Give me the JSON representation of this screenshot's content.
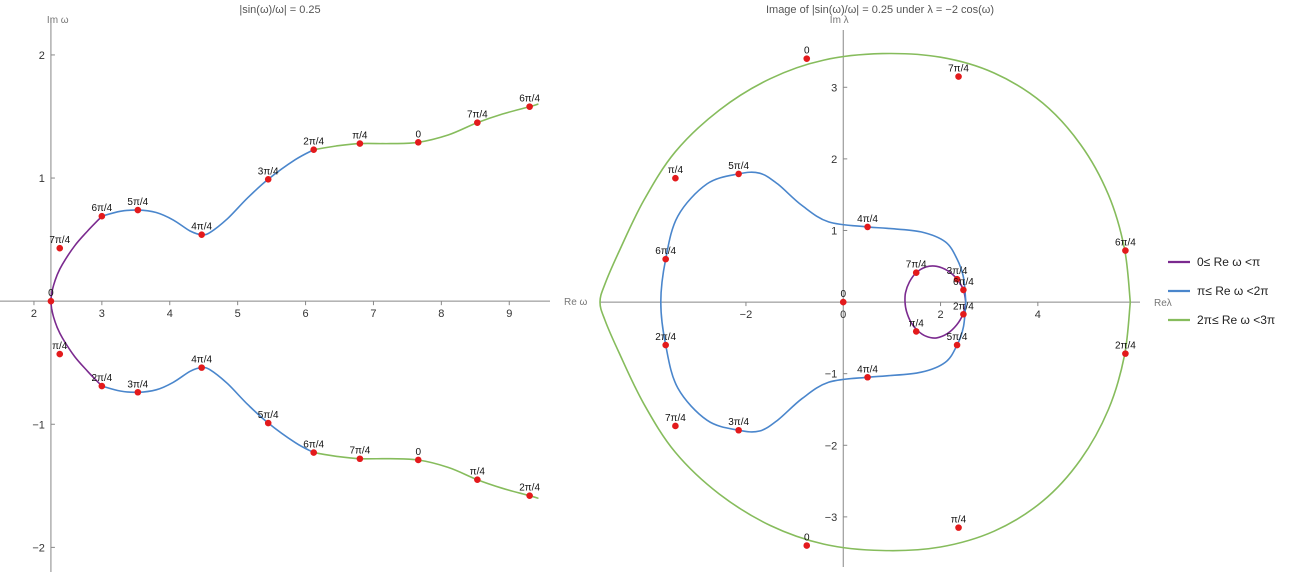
{
  "colors": {
    "purple": "#7b2a8f",
    "blue": "#4a86cc",
    "green": "#86bc5c",
    "point": "#e31a1c"
  },
  "legend": [
    {
      "label": "0≤ Re ω <π",
      "color": "#7b2a8f"
    },
    {
      "label": "π≤ Re ω <2π",
      "color": "#4a86cc"
    },
    {
      "label": "2π≤ Re ω <3π",
      "color": "#86bc5c"
    }
  ],
  "chart_data": [
    {
      "type": "line",
      "title": "|sin(ω)/ω| = 0.25",
      "xlabel": "Re ω",
      "ylabel": "Im ω",
      "xlim": [
        1.5,
        9.6
      ],
      "ylim": [
        -2.2,
        2.3
      ],
      "xticks": [
        2,
        3,
        4,
        5,
        6,
        7,
        8,
        9
      ],
      "yticks": [
        -2,
        -1,
        1,
        2
      ],
      "grid": false,
      "series": [
        {
          "name": "0≤ Re ω <π",
          "color": "#7b2a8f",
          "x": [
            3.0,
            2.93,
            2.79,
            2.6,
            2.42,
            2.34,
            2.29,
            2.26,
            2.25
          ],
          "y": [
            0.69,
            0.65,
            0.57,
            0.45,
            0.3,
            0.21,
            0.13,
            0.06,
            0.0
          ]
        },
        {
          "name": "π≤ Re ω <2π",
          "color": "#4a86cc",
          "x": [
            6.12,
            5.85,
            5.45,
            5.15,
            4.85,
            4.6,
            4.47,
            4.3,
            4.05,
            3.8,
            3.53,
            3.27,
            3.0
          ],
          "y": [
            1.23,
            1.15,
            0.99,
            0.84,
            0.67,
            0.56,
            0.54,
            0.57,
            0.66,
            0.72,
            0.74,
            0.73,
            0.69
          ]
        },
        {
          "name": "2π≤ Re ω <3π",
          "color": "#86bc5c",
          "x": [
            9.42,
            9.3,
            8.9,
            8.53,
            8.1,
            7.66,
            7.25,
            6.8,
            6.45,
            6.12
          ],
          "y": [
            1.6,
            1.58,
            1.52,
            1.45,
            1.35,
            1.29,
            1.28,
            1.28,
            1.26,
            1.23
          ]
        }
      ],
      "points": [
        {
          "x": 2.25,
          "y": 0.0,
          "label": "0"
        },
        {
          "x": 2.38,
          "y": 0.43,
          "label": "7π/4"
        },
        {
          "x": 3.0,
          "y": 0.69,
          "label": "6π/4"
        },
        {
          "x": 3.53,
          "y": 0.74,
          "label": "5π/4"
        },
        {
          "x": 4.47,
          "y": 0.54,
          "label": "4π/4"
        },
        {
          "x": 5.45,
          "y": 0.99,
          "label": "3π/4"
        },
        {
          "x": 6.12,
          "y": 1.23,
          "label": "2π/4"
        },
        {
          "x": 6.8,
          "y": 1.28,
          "label": "π/4"
        },
        {
          "x": 7.66,
          "y": 1.29,
          "label": "0"
        },
        {
          "x": 8.53,
          "y": 1.45,
          "label": "7π/4"
        },
        {
          "x": 9.3,
          "y": 1.58,
          "label": "6π/4"
        },
        {
          "x": 2.38,
          "y": -0.43,
          "label": "π/4"
        },
        {
          "x": 3.0,
          "y": -0.69,
          "label": "2π/4"
        },
        {
          "x": 3.53,
          "y": -0.74,
          "label": "3π/4"
        },
        {
          "x": 4.47,
          "y": -0.54,
          "label": "4π/4"
        },
        {
          "x": 5.45,
          "y": -0.99,
          "label": "5π/4"
        },
        {
          "x": 6.12,
          "y": -1.23,
          "label": "6π/4"
        },
        {
          "x": 6.8,
          "y": -1.28,
          "label": "7π/4"
        },
        {
          "x": 7.66,
          "y": -1.29,
          "label": "0"
        },
        {
          "x": 8.53,
          "y": -1.45,
          "label": "π/4"
        },
        {
          "x": 9.3,
          "y": -1.58,
          "label": "2π/4"
        }
      ]
    },
    {
      "type": "line",
      "title": "Image of |sin(ω)/ω| = 0.25 under λ = −2 cos(ω)",
      "xlabel": "Reλ",
      "ylabel": "Im λ",
      "xlim": [
        -5.0,
        6.1
      ],
      "ylim": [
        -3.7,
        3.8
      ],
      "xticks": [
        -2,
        0,
        2,
        4
      ],
      "yticks": [
        -3,
        -2,
        -1,
        1,
        2,
        3
      ],
      "grid": false,
      "series": [
        {
          "name": "0≤ Re ω <π",
          "color": "#7b2a8f",
          "x": [
            2.52,
            2.47,
            2.34,
            2.14,
            1.92,
            1.7,
            1.5,
            1.36,
            1.28,
            1.27,
            1.3,
            1.39,
            1.53,
            1.71,
            1.92,
            2.14,
            2.33,
            2.46,
            2.52
          ],
          "y": [
            0.0,
            0.17,
            0.32,
            0.44,
            0.5,
            0.49,
            0.41,
            0.28,
            0.13,
            0.0,
            -0.13,
            -0.28,
            -0.4,
            -0.48,
            -0.5,
            -0.44,
            -0.32,
            -0.17,
            0.0
          ]
        },
        {
          "name": "π≤ Re ω <2π",
          "color": "#4a86cc",
          "x": [
            2.52,
            2.47,
            2.34,
            2.1,
            1.6,
            0.9,
            0.5,
            -0.3,
            -0.85,
            -1.35,
            -1.72,
            -2.15,
            -2.8,
            -3.4,
            -3.65,
            -3.75,
            -3.65,
            -3.4,
            -2.8,
            -2.15,
            -1.72,
            -1.35,
            -0.85,
            -0.3,
            0.5,
            0.9,
            1.6,
            2.1,
            2.34,
            2.47,
            2.52
          ],
          "y": [
            0.0,
            0.35,
            0.6,
            0.84,
            0.98,
            1.03,
            1.05,
            1.12,
            1.35,
            1.65,
            1.8,
            1.79,
            1.65,
            1.2,
            0.6,
            0.0,
            -0.6,
            -1.2,
            -1.65,
            -1.79,
            -1.8,
            -1.65,
            -1.35,
            -1.12,
            -1.05,
            -1.03,
            -0.98,
            -0.84,
            -0.6,
            -0.35,
            0.0
          ]
        },
        {
          "name": "2π≤ Re ω <3π",
          "color": "#86bc5c",
          "x": [
            5.9,
            5.78,
            5.45,
            4.88,
            4.1,
            3.1,
            2.0,
            0.8,
            -0.4,
            -1.5,
            -2.55,
            -3.45,
            -4.1,
            -4.6,
            -4.9,
            -5.0,
            -4.9,
            -4.6,
            -4.1,
            -3.45,
            -2.55,
            -1.5,
            -0.4,
            0.8,
            2.0,
            3.1,
            4.1,
            4.88,
            5.45,
            5.78,
            5.9
          ],
          "y": [
            0.0,
            0.75,
            1.5,
            2.2,
            2.78,
            3.2,
            3.42,
            3.47,
            3.38,
            3.12,
            2.68,
            2.1,
            1.42,
            0.72,
            0.25,
            0.0,
            -0.25,
            -0.72,
            -1.42,
            -2.1,
            -2.68,
            -3.12,
            -3.38,
            -3.47,
            -3.42,
            -3.2,
            -2.78,
            -2.2,
            -1.5,
            -0.75,
            0.0
          ]
        }
      ],
      "points": [
        {
          "x": 0.0,
          "y": 0.0,
          "label": "0"
        },
        {
          "x": 1.5,
          "y": 0.41,
          "label": "7π/4"
        },
        {
          "x": 2.34,
          "y": 0.32,
          "label": "3π/4"
        },
        {
          "x": 2.47,
          "y": 0.17,
          "label": "6π/4"
        },
        {
          "x": 2.47,
          "y": -0.17,
          "label": "2π/4"
        },
        {
          "x": 1.5,
          "y": -0.41,
          "label": "π/4"
        },
        {
          "x": 2.34,
          "y": -0.6,
          "label": "5π/4"
        },
        {
          "x": 0.5,
          "y": 1.05,
          "label": "4π/4"
        },
        {
          "x": -2.15,
          "y": 1.79,
          "label": "5π/4"
        },
        {
          "x": -3.65,
          "y": 0.6,
          "label": "6π/4"
        },
        {
          "x": -3.65,
          "y": -0.6,
          "label": "2π/4"
        },
        {
          "x": -2.15,
          "y": -1.79,
          "label": "3π/4"
        },
        {
          "x": 0.5,
          "y": -1.05,
          "label": "4π/4"
        },
        {
          "x": -0.75,
          "y": 3.4,
          "label": "0"
        },
        {
          "x": 2.37,
          "y": 3.15,
          "label": "7π/4"
        },
        {
          "x": -3.45,
          "y": 1.73,
          "label": "π/4"
        },
        {
          "x": 5.8,
          "y": 0.72,
          "label": "6π/4"
        },
        {
          "x": 5.8,
          "y": -0.72,
          "label": "2π/4"
        },
        {
          "x": -3.45,
          "y": -1.73,
          "label": "7π/4"
        },
        {
          "x": -0.75,
          "y": -3.4,
          "label": "0"
        },
        {
          "x": 2.37,
          "y": -3.15,
          "label": "π/4"
        }
      ]
    }
  ]
}
